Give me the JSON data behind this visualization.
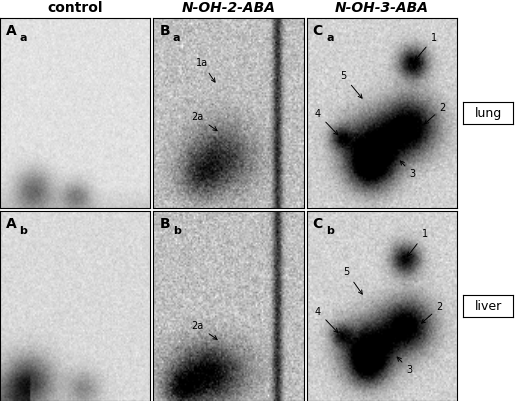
{
  "title_col1": "control",
  "title_col2": "N-OH-2-ABA",
  "title_col3": "N-OH-3-ABA",
  "label_row1": "lung",
  "label_row2": "liver",
  "panel_label_main": [
    [
      "A",
      "B",
      "C"
    ],
    [
      "A",
      "B",
      "C"
    ]
  ],
  "panel_label_sub": [
    [
      "a",
      "a",
      "a"
    ],
    [
      "b",
      "b",
      "b"
    ]
  ],
  "bg_color": "#ffffff",
  "text_color": "#000000",
  "title_fontsize": 10,
  "label_fontsize": 9,
  "panel_label_fontsize": 10,
  "annotation_fontsize": 7,
  "figsize": [
    5.19,
    4.01
  ],
  "dpi": 100
}
